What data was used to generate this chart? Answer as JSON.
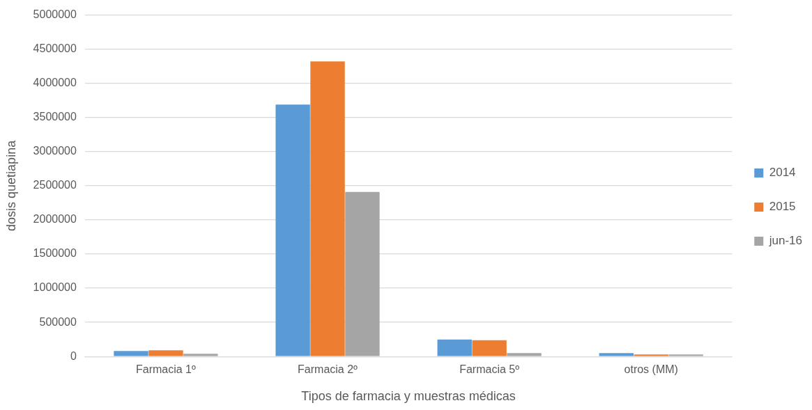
{
  "chart_data": {
    "type": "bar",
    "xlabel": "Tipos de farmacia y muestras médicas",
    "ylabel": "dosis quetiapina",
    "categories": [
      "Farmacia 1º",
      "Farmacia 2º",
      "Farmacia 5º",
      "otros (MM)"
    ],
    "series": [
      {
        "name": "2014",
        "color": "#5b9bd5",
        "values": [
          80000,
          3690000,
          250000,
          50000
        ]
      },
      {
        "name": "2015",
        "color": "#ed7d31",
        "values": [
          90000,
          4320000,
          240000,
          30000
        ]
      },
      {
        "name": "jun-16",
        "color": "#a5a5a5",
        "values": [
          40000,
          2410000,
          50000,
          30000
        ]
      }
    ],
    "ylim": [
      0,
      5000000
    ],
    "yticks": [
      0,
      500000,
      1000000,
      1500000,
      2000000,
      2500000,
      3000000,
      3500000,
      4000000,
      4500000,
      5000000
    ],
    "grid": "y",
    "legend": "right"
  }
}
